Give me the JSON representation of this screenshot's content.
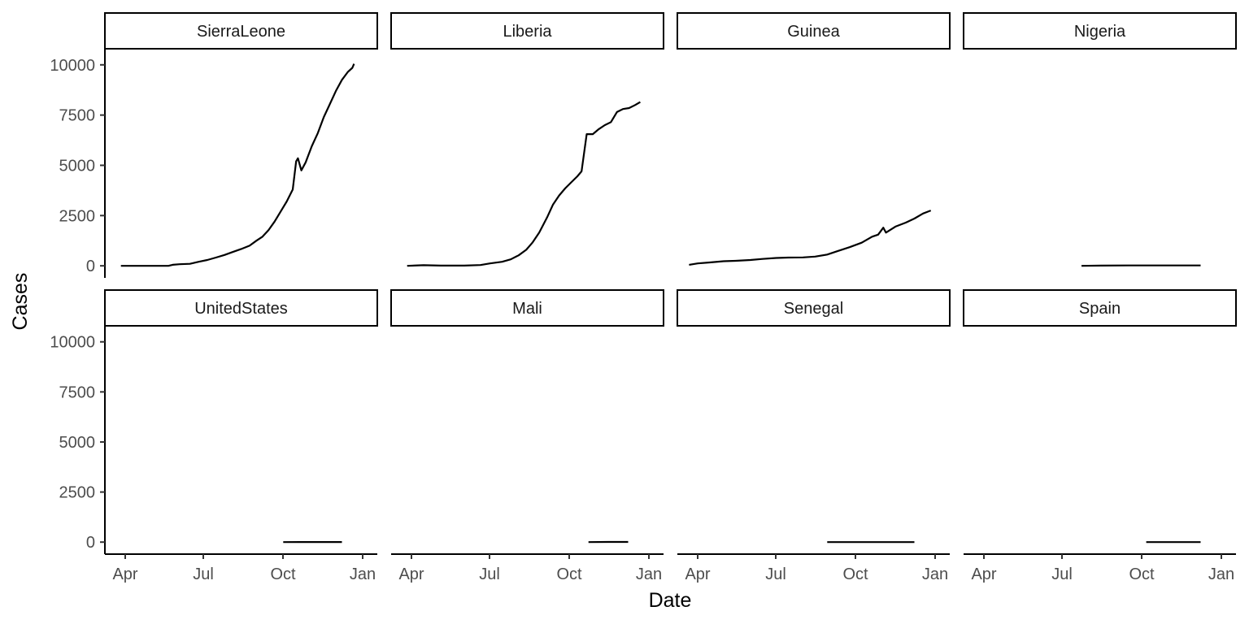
{
  "chart_data": {
    "type": "line",
    "facet_layout": "2 rows x 4 columns",
    "xlabel": "Date",
    "ylabel": "Cases",
    "x_ticks": [
      "Apr",
      "Jul",
      "Oct",
      "Jan"
    ],
    "y_ticks": [
      0,
      2500,
      5000,
      7500,
      10000
    ],
    "ylim": [
      -600,
      10800
    ],
    "xlim": [
      "2014-03-22",
      "2015-01-06"
    ],
    "line_color": "#000000",
    "grid": false,
    "facets": [
      {
        "name": "SierraLeone",
        "points": [
          [
            "2014-03-27",
            0
          ],
          [
            "2014-04-15",
            0
          ],
          [
            "2014-05-01",
            0
          ],
          [
            "2014-05-21",
            0
          ],
          [
            "2014-05-26",
            50
          ],
          [
            "2014-06-03",
            80
          ],
          [
            "2014-06-15",
            100
          ],
          [
            "2014-06-25",
            200
          ],
          [
            "2014-07-05",
            290
          ],
          [
            "2014-07-15",
            410
          ],
          [
            "2014-07-25",
            540
          ],
          [
            "2014-08-03",
            680
          ],
          [
            "2014-08-13",
            830
          ],
          [
            "2014-08-23",
            1000
          ],
          [
            "2014-08-31",
            1250
          ],
          [
            "2014-09-07",
            1450
          ],
          [
            "2014-09-14",
            1780
          ],
          [
            "2014-09-21",
            2200
          ],
          [
            "2014-09-28",
            2700
          ],
          [
            "2014-10-05",
            3200
          ],
          [
            "2014-10-12",
            3800
          ],
          [
            "2014-10-16",
            5200
          ],
          [
            "2014-10-18",
            5350
          ],
          [
            "2014-10-22",
            4750
          ],
          [
            "2014-10-27",
            5150
          ],
          [
            "2014-11-03",
            5950
          ],
          [
            "2014-11-10",
            6600
          ],
          [
            "2014-11-17",
            7400
          ],
          [
            "2014-11-24",
            8050
          ],
          [
            "2014-12-01",
            8700
          ],
          [
            "2014-12-08",
            9250
          ],
          [
            "2014-12-15",
            9650
          ],
          [
            "2014-12-20",
            9850
          ],
          [
            "2014-12-22",
            10050
          ]
        ]
      },
      {
        "name": "Liberia",
        "points": [
          [
            "2014-03-27",
            0
          ],
          [
            "2014-04-15",
            30
          ],
          [
            "2014-05-05",
            10
          ],
          [
            "2014-06-01",
            10
          ],
          [
            "2014-06-20",
            40
          ],
          [
            "2014-07-01",
            120
          ],
          [
            "2014-07-15",
            200
          ],
          [
            "2014-07-25",
            320
          ],
          [
            "2014-08-03",
            520
          ],
          [
            "2014-08-12",
            800
          ],
          [
            "2014-08-19",
            1150
          ],
          [
            "2014-08-27",
            1650
          ],
          [
            "2014-09-05",
            2400
          ],
          [
            "2014-09-12",
            3050
          ],
          [
            "2014-09-19",
            3500
          ],
          [
            "2014-09-26",
            3850
          ],
          [
            "2014-10-03",
            4150
          ],
          [
            "2014-10-10",
            4450
          ],
          [
            "2014-10-15",
            4700
          ],
          [
            "2014-10-21",
            6550
          ],
          [
            "2014-10-28",
            6550
          ],
          [
            "2014-11-04",
            6800
          ],
          [
            "2014-11-11",
            7000
          ],
          [
            "2014-11-18",
            7150
          ],
          [
            "2014-11-25",
            7650
          ],
          [
            "2014-12-02",
            7800
          ],
          [
            "2014-12-09",
            7850
          ],
          [
            "2014-12-16",
            8000
          ],
          [
            "2014-12-22",
            8150
          ]
        ]
      },
      {
        "name": "Guinea",
        "points": [
          [
            "2014-03-22",
            50
          ],
          [
            "2014-04-01",
            120
          ],
          [
            "2014-04-15",
            170
          ],
          [
            "2014-05-01",
            230
          ],
          [
            "2014-05-15",
            250
          ],
          [
            "2014-06-01",
            290
          ],
          [
            "2014-06-15",
            340
          ],
          [
            "2014-07-01",
            390
          ],
          [
            "2014-07-15",
            410
          ],
          [
            "2014-08-01",
            420
          ],
          [
            "2014-08-15",
            460
          ],
          [
            "2014-08-29",
            560
          ],
          [
            "2014-09-10",
            730
          ],
          [
            "2014-09-24",
            930
          ],
          [
            "2014-10-08",
            1150
          ],
          [
            "2014-10-20",
            1450
          ],
          [
            "2014-10-27",
            1550
          ],
          [
            "2014-11-02",
            1900
          ],
          [
            "2014-11-05",
            1650
          ],
          [
            "2014-11-16",
            1950
          ],
          [
            "2014-11-28",
            2150
          ],
          [
            "2014-12-08",
            2350
          ],
          [
            "2014-12-18",
            2600
          ],
          [
            "2014-12-27",
            2750
          ]
        ]
      },
      {
        "name": "Nigeria",
        "points": [
          [
            "2014-07-23",
            0
          ],
          [
            "2014-08-15",
            10
          ],
          [
            "2014-09-15",
            20
          ],
          [
            "2014-10-15",
            20
          ],
          [
            "2014-11-15",
            20
          ],
          [
            "2014-12-08",
            20
          ]
        ]
      },
      {
        "name": "UnitedStates",
        "points": [
          [
            "2014-10-01",
            0
          ],
          [
            "2014-10-20",
            4
          ],
          [
            "2014-11-15",
            4
          ],
          [
            "2014-12-08",
            4
          ]
        ]
      },
      {
        "name": "Mali",
        "points": [
          [
            "2014-10-23",
            0
          ],
          [
            "2014-11-15",
            7
          ],
          [
            "2014-12-08",
            8
          ]
        ]
      },
      {
        "name": "Senegal",
        "points": [
          [
            "2014-08-29",
            0
          ],
          [
            "2014-10-15",
            1
          ],
          [
            "2014-12-08",
            1
          ]
        ]
      },
      {
        "name": "Spain",
        "points": [
          [
            "2014-10-06",
            0
          ],
          [
            "2014-11-01",
            1
          ],
          [
            "2014-12-08",
            1
          ]
        ]
      }
    ]
  }
}
